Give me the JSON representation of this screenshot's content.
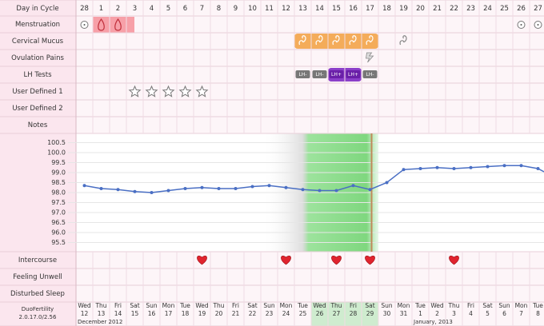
{
  "rows": [
    "Day in Cycle",
    "Menstruation",
    "Cervical Mucus",
    "Ovulation Pains",
    "LH Tests",
    "User Defined 1",
    "User Defined 2",
    "Notes",
    "Intercourse",
    "Feeling Unwell",
    "Disturbed Sleep"
  ],
  "cycle_days": [
    "28",
    "1",
    "2",
    "3",
    "4",
    "5",
    "6",
    "7",
    "8",
    "9",
    "10",
    "11",
    "12",
    "13",
    "14",
    "15",
    "16",
    "17",
    "18",
    "19",
    "20",
    "21",
    "22",
    "23",
    "24",
    "25",
    "26",
    "27"
  ],
  "weekdays": [
    "Wed",
    "Thu",
    "Fri",
    "Sat",
    "Sun",
    "Mon",
    "Tue",
    "Wed",
    "Thu",
    "Fri",
    "Sat",
    "Sun",
    "Mon",
    "Tue",
    "Wed",
    "Thu",
    "Fri",
    "Sat",
    "Sun",
    "Mon",
    "Tue",
    "Wed",
    "Thu",
    "Fri",
    "Sat",
    "Sun",
    "Mon",
    "Tue"
  ],
  "dates": [
    "12",
    "13",
    "14",
    "15",
    "16",
    "17",
    "18",
    "19",
    "20",
    "21",
    "22",
    "23",
    "24",
    "25",
    "26",
    "27",
    "28",
    "29",
    "30",
    "31",
    "1",
    "2",
    "3",
    "4",
    "5",
    "6",
    "7",
    "8"
  ],
  "months": [
    "December 2012",
    "January, 2013"
  ],
  "lh_tests": [
    "LH-",
    "LH-",
    "LH+",
    "LH+",
    "LH-"
  ],
  "version": [
    "DuoFertility",
    "2.0.17.0/2.56"
  ],
  "chart_data": {
    "type": "line",
    "color": "#4a6fc4",
    "values": [
      98.35,
      98.2,
      98.15,
      98.05,
      98.0,
      98.1,
      98.2,
      98.25,
      98.2,
      98.2,
      98.3,
      98.35,
      98.25,
      98.15,
      98.1,
      98.1,
      98.35,
      98.15,
      98.5,
      99.15,
      99.2,
      99.25,
      99.2,
      99.25,
      99.3,
      99.35,
      99.35,
      99.2
    ],
    "ylim": [
      95.2,
      100.8
    ],
    "yticks": [
      95.5,
      {
        "value": 96,
        "label": "96.0"
      },
      96.5,
      {
        "value": 97,
        "label": "97.0"
      },
      97.5,
      {
        "value": 98,
        "label": "98.0"
      },
      98.5,
      {
        "value": 99,
        "label": "99.0"
      },
      99.5,
      {
        "value": 100,
        "label": "100.0"
      },
      100.5
    ],
    "grid": true
  }
}
